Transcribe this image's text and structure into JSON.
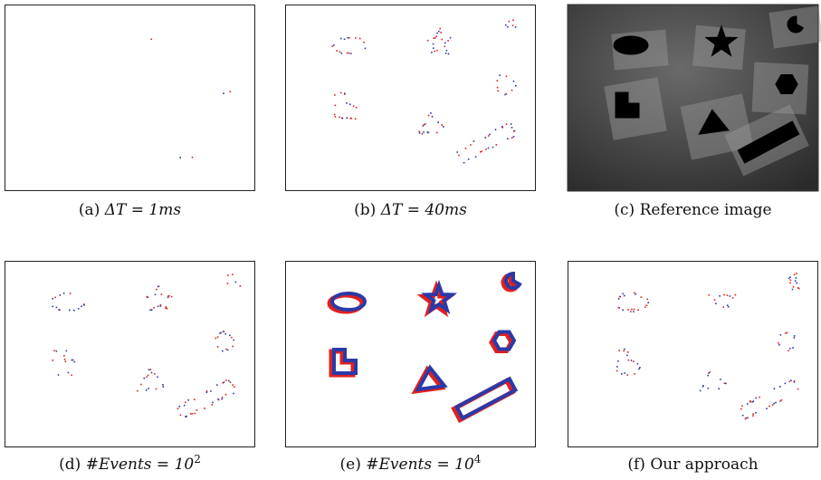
{
  "captions": [
    {
      "label": "(a)",
      "math": "ΔT = 1ms"
    },
    {
      "label": "(b)",
      "math": "ΔT = 40ms"
    },
    {
      "label": "(c)",
      "text": "Reference image"
    },
    {
      "label": "(d)",
      "math": "#Events = 10",
      "sup": "2"
    },
    {
      "label": "(e)",
      "math": "#Events = 10",
      "sup": "4"
    },
    {
      "label": "(f)",
      "text": "Our approach"
    }
  ]
}
